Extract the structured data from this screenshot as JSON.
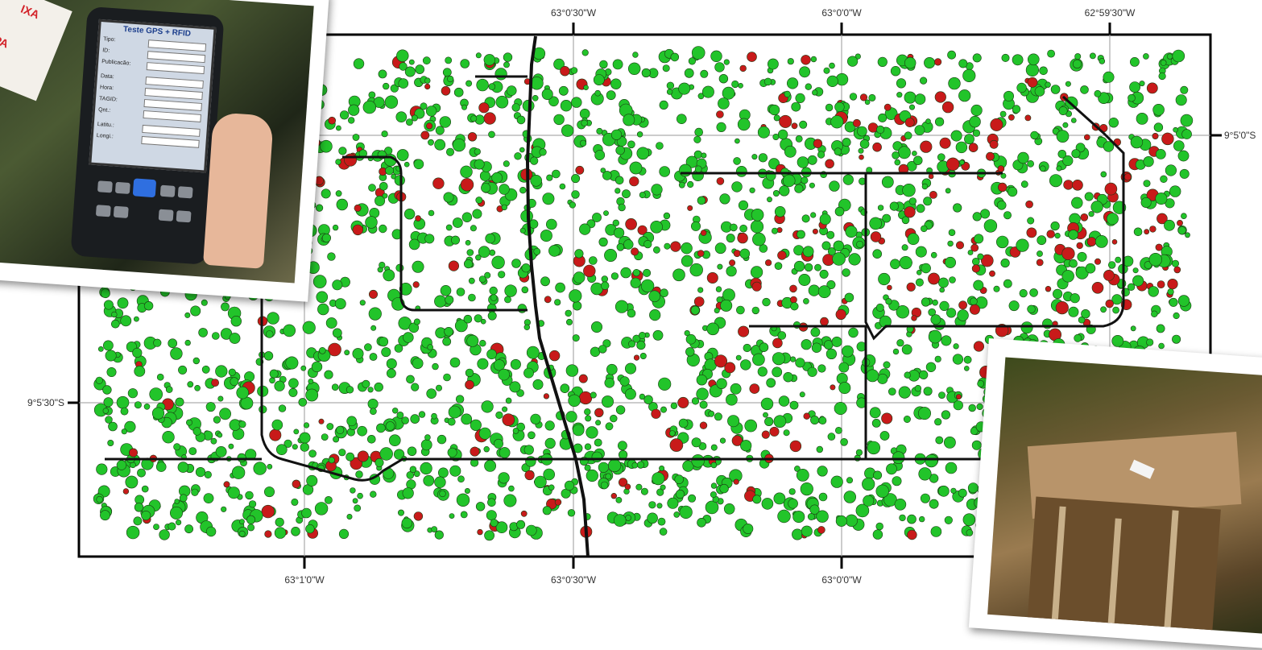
{
  "map": {
    "top_labels": [
      "63°0'30\"W",
      "63°0'0\"W",
      "62°59'30\"W"
    ],
    "bottom_labels": [
      "63°1'0\"W",
      "63°0'30\"W",
      "63°0'0\"W"
    ],
    "left_labels": [
      "9°5'30\"S"
    ],
    "right_labels": [
      "9°5'0\"S"
    ],
    "point_colors": {
      "green": "#22c42a",
      "red": "#c81a1a"
    }
  },
  "photo_device": {
    "title": "Teste GPS + RFID",
    "tag_text_1": "IXA",
    "tag_text_2": "PA",
    "fields": [
      "Tipo:",
      "ID:",
      "Publicacão:",
      "Data:",
      "Hora:",
      "TAGID:",
      "Qnt.:",
      "Latitu.:",
      "Longi.:"
    ]
  },
  "icons": [
    "gps-device-icon",
    "tree-stump-icon"
  ]
}
